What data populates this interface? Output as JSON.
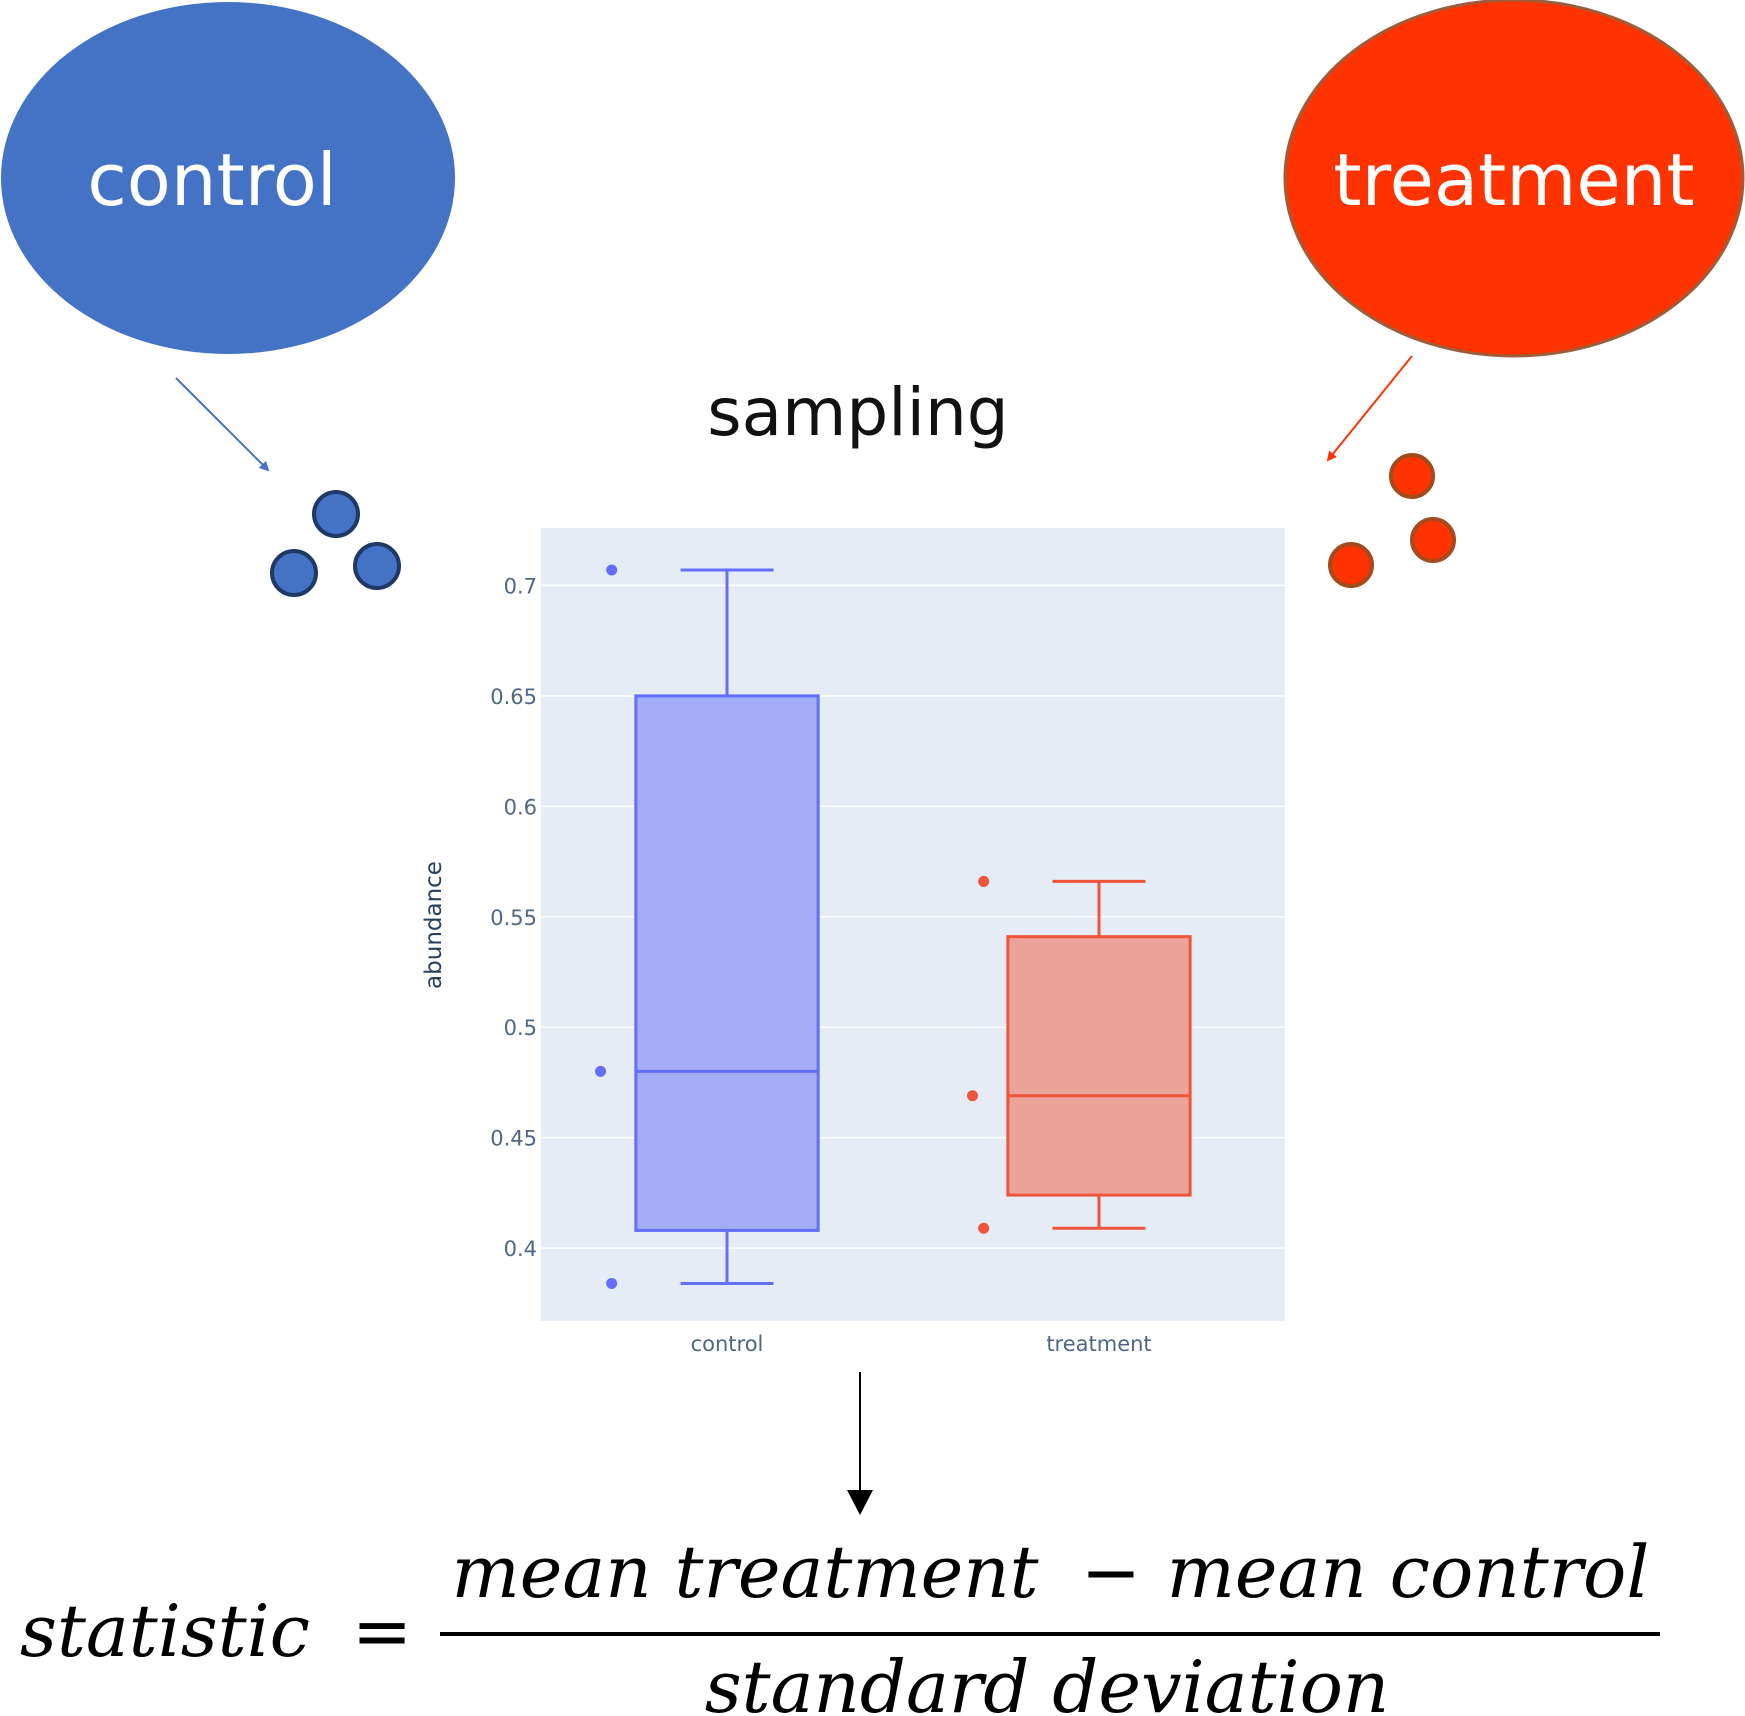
{
  "populations": {
    "control": {
      "label": "control",
      "color": "#4472c4"
    },
    "treatment": {
      "label": "treatment",
      "color": "#ff3300"
    }
  },
  "process_label": "sampling",
  "chart_data": {
    "type": "box",
    "ylabel": "abundance",
    "xlabel": "",
    "ylim": [
      0.367,
      0.726
    ],
    "yticks": [
      0.4,
      0.45,
      0.5,
      0.55,
      0.6,
      0.65,
      0.7
    ],
    "ytick_labels": [
      "0.4",
      "0.45",
      "0.5",
      "0.55",
      "0.6",
      "0.65",
      "0.7"
    ],
    "grid": true,
    "categories": [
      "control",
      "treatment"
    ],
    "series": [
      {
        "category": "control",
        "color": "#636efa",
        "fill": "#a3acf6",
        "min": 0.384,
        "q1": 0.408,
        "median": 0.48,
        "q3": 0.65,
        "max": 0.707,
        "points": [
          0.707,
          0.48,
          0.384
        ]
      },
      {
        "category": "treatment",
        "color": "#ef553b",
        "fill": "#eba39a",
        "min": 0.409,
        "q1": 0.424,
        "median": 0.469,
        "q3": 0.541,
        "max": 0.566,
        "points": [
          0.566,
          0.469,
          0.409
        ]
      }
    ]
  },
  "formula": {
    "lhs": "statistic",
    "equals": "=",
    "numerator_left": "mean treatment",
    "minus": "−",
    "numerator_right": "mean control",
    "denominator": "standard deviation"
  }
}
